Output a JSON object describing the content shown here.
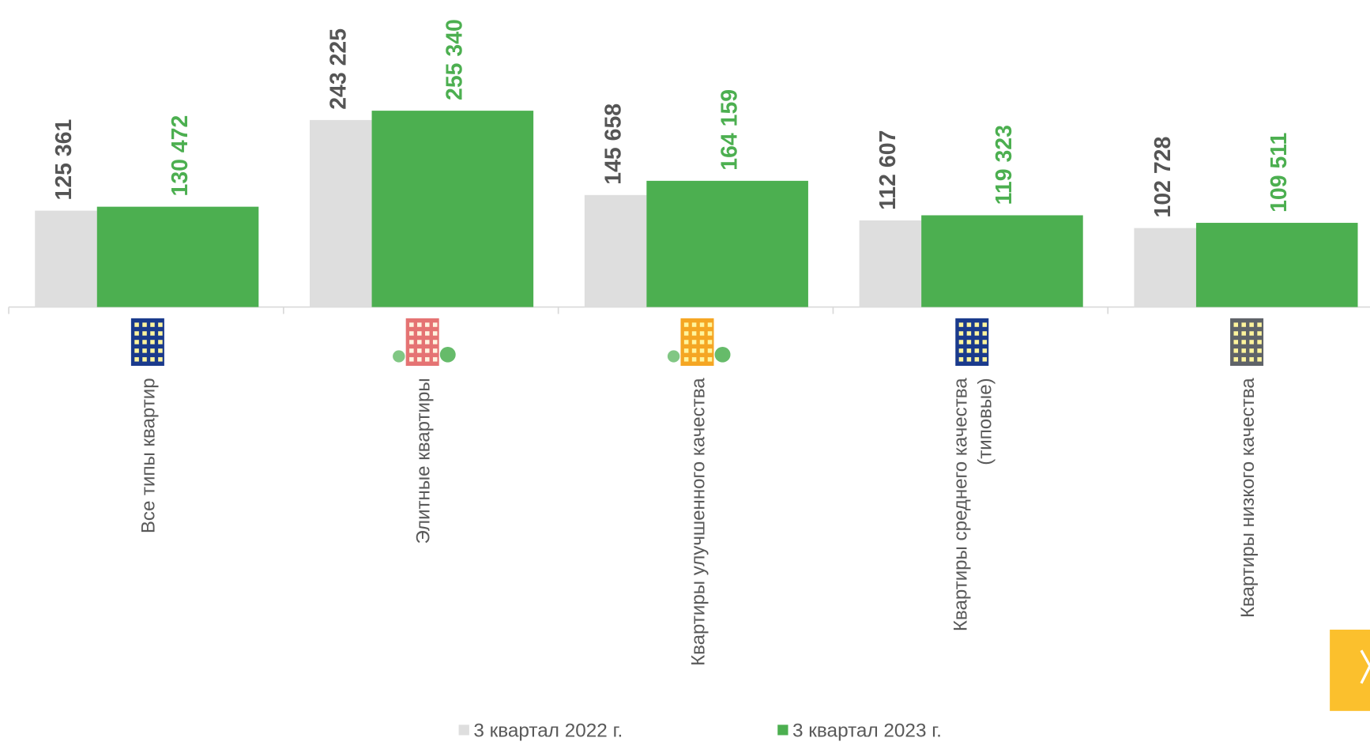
{
  "chart_data": {
    "type": "bar",
    "categories": [
      "Все типы квартир",
      "Элитные квартиры",
      "Квартиры улучшенного качества",
      "Квартиры среднего качества\n(типовые)",
      "Квартиры низкого качества"
    ],
    "series": [
      {
        "name": "3 квартал 2022 г.",
        "color": "#dedede",
        "label_color": "#555555",
        "values": [
          125361,
          243225,
          145658,
          112607,
          102728
        ],
        "value_labels": [
          "125 361",
          "243 225",
          "145 658",
          "112 607",
          "102 728"
        ]
      },
      {
        "name": "3 квартал 2023 г.",
        "color": "#4caf50",
        "label_color": "#4caf50",
        "values": [
          130472,
          255340,
          164159,
          119323,
          109511
        ],
        "value_labels": [
          "130 472",
          "255 340",
          "164 159",
          "119 323",
          "109 511"
        ]
      }
    ]
  }
}
